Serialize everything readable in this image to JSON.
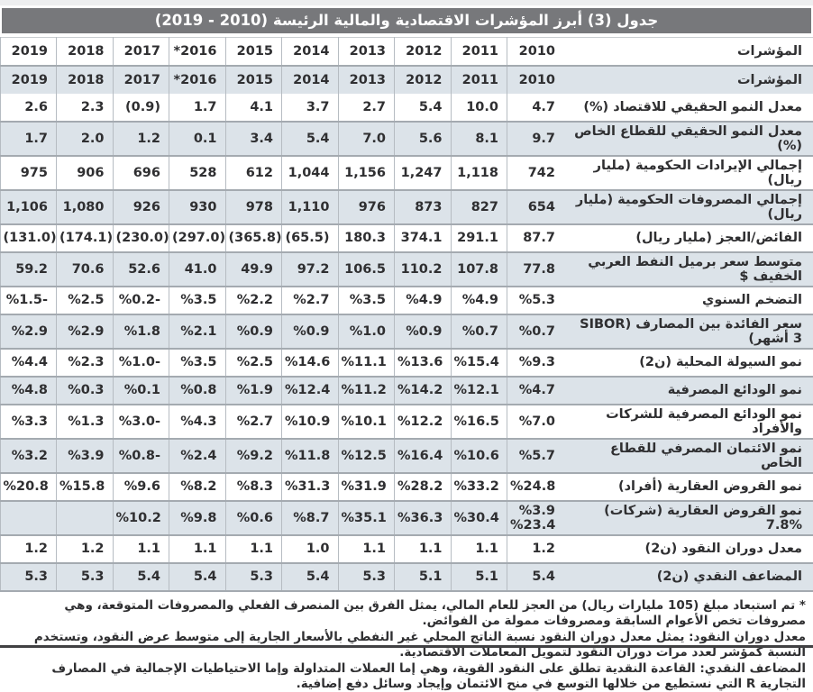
{
  "title": "جدول (3) أبرز المؤشرات الاقتصادية والمالية الرئيسة (2010 - 2019)",
  "table": {
    "indicator_header": "المؤشرات",
    "years": [
      "2010",
      "2011",
      "2012",
      "2013",
      "2014",
      "2015",
      "*2016",
      "2017",
      "2018",
      "2019"
    ],
    "rows": [
      {
        "label": "معدل النمو الحقيقي للاقتصاد  (%)",
        "values": [
          "4.7",
          "10.0",
          "5.4",
          "2.7",
          "3.7",
          "4.1",
          "1.7",
          "(0.9)",
          "2.3",
          "2.6"
        ]
      },
      {
        "label": "معدل النمو الحقيقي للقطاع الخاص  (%)",
        "values": [
          "9.7",
          "8.1",
          "5.6",
          "7.0",
          "5.4",
          "3.4",
          "0.1",
          "1.2",
          "2.0",
          "1.7"
        ]
      },
      {
        "label": "إجمالي الإيرادات الحكومية (مليار ريال)",
        "values": [
          "742",
          "1,118",
          "1,247",
          "1,156",
          "1,044",
          "612",
          "528",
          "696",
          "906",
          "975"
        ]
      },
      {
        "label": "إجمالي المصروفات الحكومية (مليار ريال)",
        "values": [
          "654",
          "827",
          "873",
          "976",
          "1,110",
          "978",
          "930",
          "926",
          "1,080",
          "1,106"
        ]
      },
      {
        "label": "الفائض/العجز (مليار ريال)",
        "values": [
          "87.7",
          "291.1",
          "374.1",
          "180.3",
          "(65.5)",
          "(365.8)",
          "(297.0)",
          "(230.0)",
          "(174.1)",
          "(131.0)"
        ]
      },
      {
        "label": "متوسط سعر برميل النفط العربي الخفيف $",
        "values": [
          "77.8",
          "107.8",
          "110.2",
          "106.5",
          "97.2",
          "49.9",
          "41.0",
          "52.6",
          "70.6",
          "59.2"
        ]
      },
      {
        "label": "التضخم السنوي",
        "values": [
          "%5.3",
          "%4.9",
          "%4.9",
          "%3.5",
          "%2.7",
          "%2.2",
          "%3.5",
          "%0.2-",
          "%2.5",
          "%1.5-"
        ]
      },
      {
        "label": "سعر الفائدة بين المصارف (SIBOR 3 أشهر)",
        "values": [
          "%0.7",
          "%0.7",
          "%0.9",
          "%1.0",
          "%0.9",
          "%0.9",
          "%2.1",
          "%1.8",
          "%2.9",
          "%2.9"
        ]
      },
      {
        "label": "نمو السيولة المحلية (ن2)",
        "values": [
          "%9.3",
          "%15.4",
          "%13.6",
          "%11.1",
          "%14.6",
          "%2.5",
          "%3.5",
          "%1.0-",
          "%2.3",
          "%4.4"
        ]
      },
      {
        "label": "نمو الودائع المصرفية",
        "values": [
          "%4.7",
          "%12.1",
          "%14.2",
          "%11.2",
          "%12.4",
          "%1.9",
          "%0.8",
          "%0.1",
          "%0.3",
          "%4.8"
        ]
      },
      {
        "label": "نمو الودائع المصرفية للشركات والأفراد",
        "values": [
          "%7.0",
          "%16.5",
          "%12.2",
          "%10.1",
          "%10.9",
          "%2.7",
          "%4.3",
          "%3.0-",
          "%1.3",
          "%3.3"
        ]
      },
      {
        "label": "نمو الائتمان المصرفي للقطاع الخاص",
        "values": [
          "%5.7",
          "%10.6",
          "%16.4",
          "%12.5",
          "%11.8",
          "%9.2",
          "%2.4",
          "%0.8-",
          "%3.9",
          "%3.2"
        ]
      },
      {
        "label": "نمو القروض العقارية (أفراد)",
        "values": [
          "%24.8",
          "%33.2",
          "%28.2",
          "%31.9",
          "%31.3",
          "%8.3",
          "%8.2",
          "%9.6",
          "%15.8",
          "%20.8"
        ]
      },
      {
        "label": "نمو القروض العقارية (شركات) %7.8",
        "values": [
          "%3.9\n%23.4",
          "%30.4",
          "%36.3",
          "%35.1",
          "%8.7",
          "%0.6",
          "%9.8",
          "%10.2",
          "",
          ""
        ]
      },
      {
        "label": "معدل دوران النقود (ن2)",
        "values": [
          "1.2",
          "1.1",
          "1.1",
          "1.1",
          "1.0",
          "1.1",
          "1.1",
          "1.1",
          "1.2",
          "1.2"
        ]
      },
      {
        "label": "المضاعف النقدي (ن2)",
        "values": [
          "5.4",
          "5.1",
          "5.1",
          "5.3",
          "5.4",
          "5.3",
          "5.4",
          "5.4",
          "5.3",
          "5.3"
        ]
      }
    ]
  },
  "footnotes": [
    "* تم استبعاد مبلغ (105 مليارات ريال) من العجز للعام المالي، يمثل الفرق بين المنصرف الفعلي والمصروفات المتوقعة، وهي مصروفات تخص الأعوام السابقة ومصروفات ممولة من الفوائض.",
    "معدل دوران النقود: يمثل معدل دوران النقود نسبة الناتج المحلي غير النفطي بالأسعار الجارية إلى متوسط عرض النقود، وتستخدم النسبة كمؤشر لعدد مرات دوران النقود لتمويل المعاملات الاقتصادية.",
    "المضاعف النقدي: القاعدة النقدية تطلق على النقود القوية، وهي إما العملات المتداولة وإما الاحتياطيات الإجمالية في المصارف التجارية R التي نستطيع من خلالها التوسع في منح الائتمان وإيجاد وسائل دفع إضافية."
  ],
  "colors": {
    "title_bar_bg": "#77787b",
    "title_text": "#ffffff",
    "stripe_row_bg": "#dce3e9",
    "row_separator": "#a4aab0",
    "column_separator": "#b6bcc2",
    "body_text": "#2f2f31",
    "bottom_rule": "#414143"
  }
}
